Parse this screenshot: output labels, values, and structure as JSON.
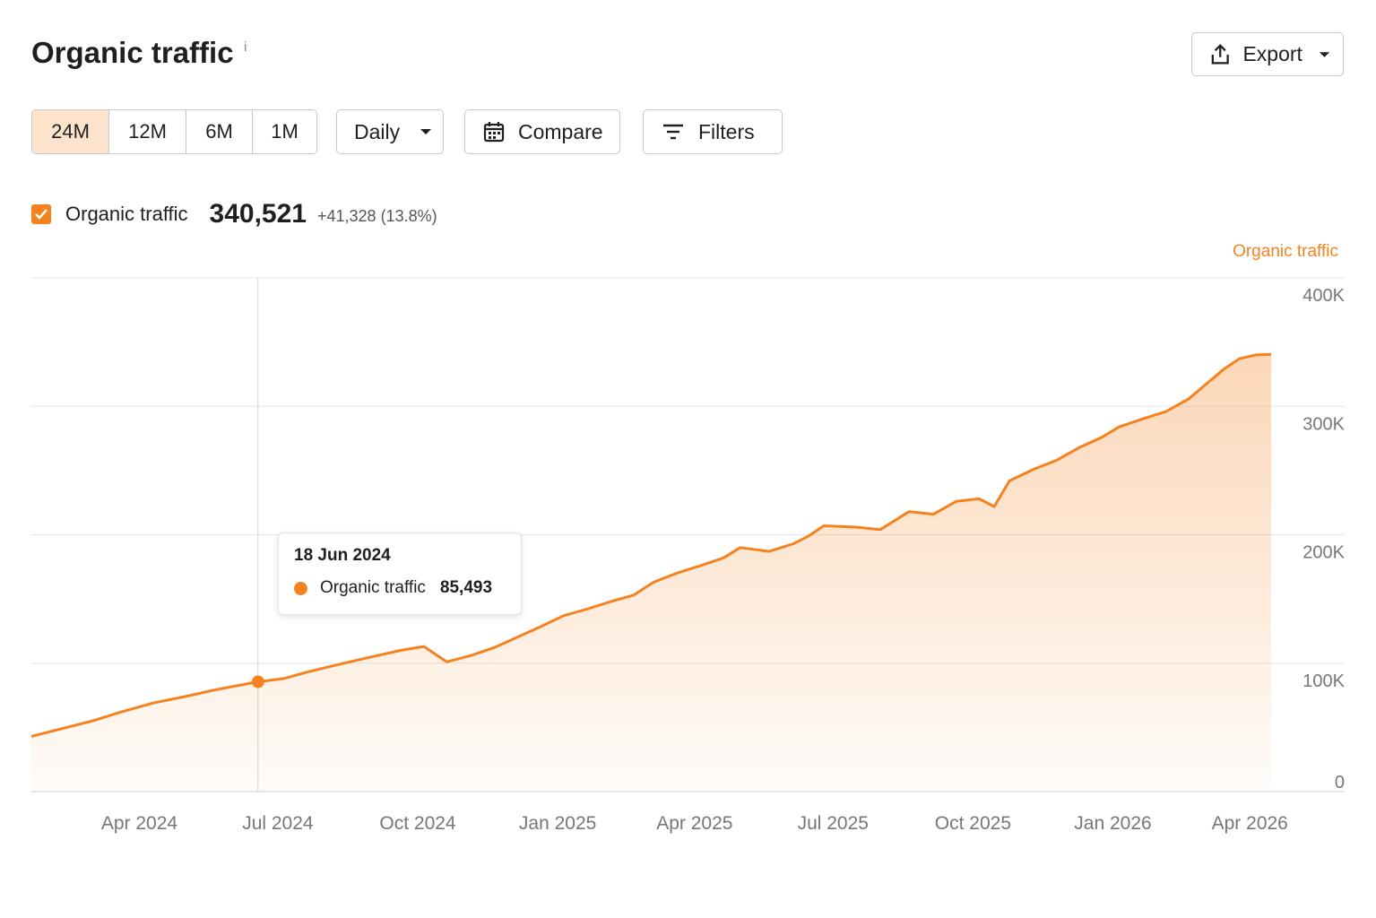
{
  "header": {
    "title": "Organic traffic",
    "info_glyph": "i",
    "export_label": "Export"
  },
  "period_options": [
    "24M",
    "12M",
    "6M",
    "1M"
  ],
  "active_period": "24M",
  "toolbar": {
    "interval_label": "Daily",
    "compare_label": "Compare",
    "filters_label": "Filters"
  },
  "metric": {
    "label": "Organic traffic",
    "checked": true,
    "value": "340,521",
    "delta": "+41,328 (13.8%)"
  },
  "tooltip": {
    "date": "18 Jun 2024",
    "series": "Organic traffic",
    "value": "85,493"
  },
  "colors": {
    "accent": "#f5821f",
    "active_period_bg": "#fde3cc",
    "grid": "#e6e6e6"
  },
  "icons": {
    "export": "export-icon",
    "caret": "caret-down-icon",
    "calendar": "calendar-icon",
    "filters": "filter-lines-icon",
    "checkbox": "check-icon"
  },
  "chart_data": {
    "type": "area",
    "series_label": "Organic traffic",
    "x_tick_labels": [
      "Apr 2024",
      "Jul 2024",
      "Oct 2024",
      "Jan 2025",
      "Apr 2025",
      "Jul 2025",
      "Oct 2025",
      "Jan 2026",
      "Apr 2026"
    ],
    "x_tick_dates": [
      "2024-04-01",
      "2024-07-01",
      "2024-10-01",
      "2025-01-01",
      "2025-04-01",
      "2025-07-01",
      "2025-10-01",
      "2026-01-01",
      "2026-04-01"
    ],
    "y_tick_labels": [
      "0",
      "100K",
      "200K",
      "300K",
      "400K"
    ],
    "y_tick_values": [
      0,
      100000,
      200000,
      300000,
      400000
    ],
    "ylim": [
      0,
      400000
    ],
    "xlim": [
      "2024-01-21",
      "2026-04-15"
    ],
    "grid": true,
    "y_axis_side": "right",
    "series": [
      {
        "name": "Organic traffic",
        "points": [
          [
            "2024-01-21",
            43000
          ],
          [
            "2024-02-10",
            49000
          ],
          [
            "2024-03-01",
            55000
          ],
          [
            "2024-03-20",
            62000
          ],
          [
            "2024-04-10",
            69000
          ],
          [
            "2024-05-01",
            74000
          ],
          [
            "2024-05-20",
            79000
          ],
          [
            "2024-06-18",
            85493
          ],
          [
            "2024-07-05",
            88000
          ],
          [
            "2024-07-20",
            93000
          ],
          [
            "2024-08-10",
            99000
          ],
          [
            "2024-09-01",
            105000
          ],
          [
            "2024-09-20",
            110000
          ],
          [
            "2024-10-05",
            113000
          ],
          [
            "2024-10-20",
            101000
          ],
          [
            "2024-11-05",
            106000
          ],
          [
            "2024-11-20",
            112000
          ],
          [
            "2024-12-05",
            120000
          ],
          [
            "2024-12-20",
            128000
          ],
          [
            "2025-01-05",
            137000
          ],
          [
            "2025-01-20",
            142000
          ],
          [
            "2025-02-05",
            148000
          ],
          [
            "2025-02-20",
            153000
          ],
          [
            "2025-03-05",
            163000
          ],
          [
            "2025-03-20",
            170000
          ],
          [
            "2025-04-05",
            176000
          ],
          [
            "2025-04-20",
            182000
          ],
          [
            "2025-05-01",
            190000
          ],
          [
            "2025-05-20",
            187000
          ],
          [
            "2025-06-05",
            193000
          ],
          [
            "2025-06-15",
            199000
          ],
          [
            "2025-06-25",
            207000
          ],
          [
            "2025-07-15",
            206000
          ],
          [
            "2025-08-01",
            204000
          ],
          [
            "2025-08-20",
            218000
          ],
          [
            "2025-09-05",
            216000
          ],
          [
            "2025-09-20",
            226000
          ],
          [
            "2025-10-05",
            228000
          ],
          [
            "2025-10-15",
            222000
          ],
          [
            "2025-10-25",
            242000
          ],
          [
            "2025-11-10",
            251000
          ],
          [
            "2025-11-25",
            258000
          ],
          [
            "2025-12-10",
            268000
          ],
          [
            "2025-12-25",
            276000
          ],
          [
            "2026-01-05",
            284000
          ],
          [
            "2026-01-20",
            290000
          ],
          [
            "2026-02-05",
            296000
          ],
          [
            "2026-02-20",
            306000
          ],
          [
            "2026-03-05",
            319000
          ],
          [
            "2026-03-15",
            329000
          ],
          [
            "2026-03-25",
            337000
          ],
          [
            "2026-04-05",
            340000
          ],
          [
            "2026-04-15",
            340521
          ]
        ]
      }
    ],
    "hover_date": "2024-06-18"
  }
}
